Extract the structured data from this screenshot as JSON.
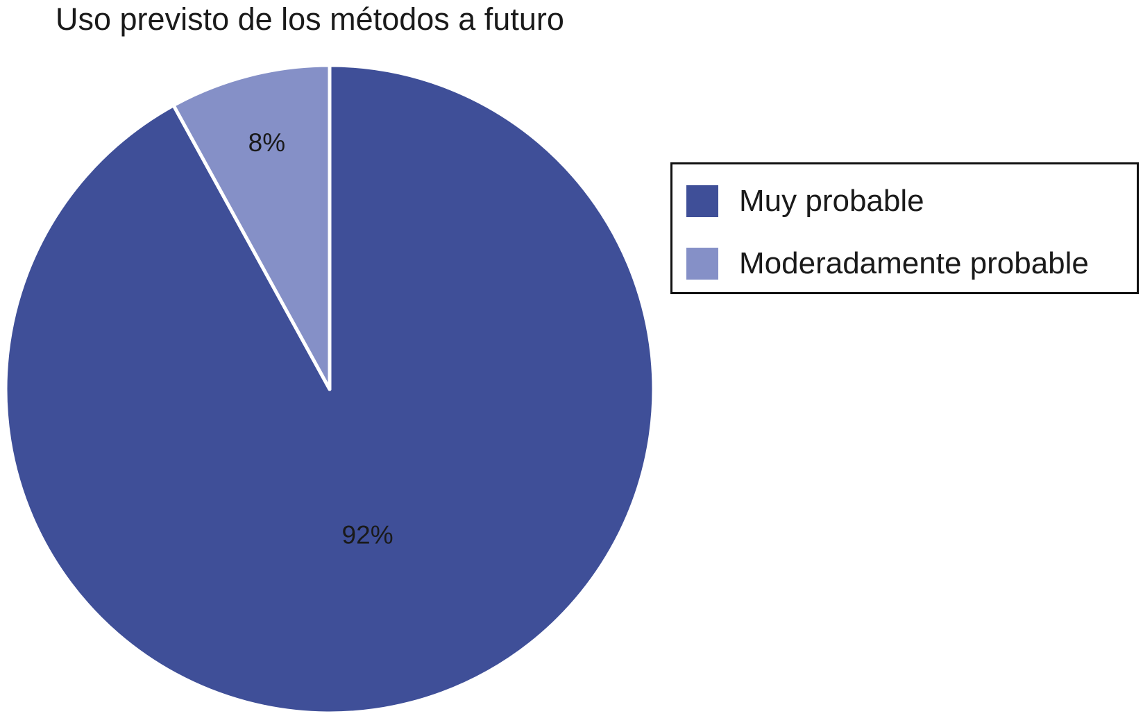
{
  "chart_data": {
    "type": "pie",
    "title": "Uso previsto de los métodos a futuro",
    "categories": [
      "Muy probable",
      "Moderadamente probable"
    ],
    "values": [
      92,
      8
    ],
    "value_labels": [
      "92%",
      "8%"
    ],
    "colors": [
      "#3f4f98",
      "#8590c7"
    ],
    "legend": {
      "placement": "right",
      "items": [
        {
          "label": "Muy probable",
          "color": "#3f4f98"
        },
        {
          "label": "Moderadamente probable",
          "color": "#8590c7"
        }
      ]
    }
  }
}
